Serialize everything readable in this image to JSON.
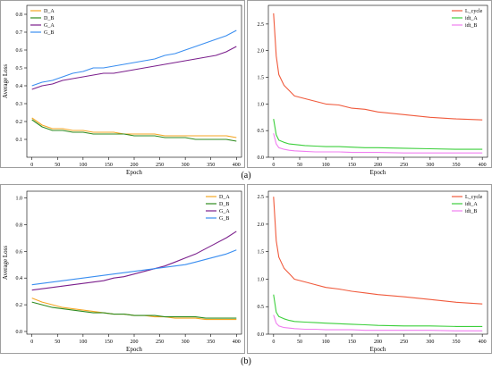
{
  "captions": [
    "(a)",
    "(b)"
  ],
  "colors": {
    "D_A": "#f5a623",
    "D_B": "#2e8b1f",
    "G_A": "#7b1f8c",
    "G_B": "#3a8ef0",
    "L_cycle": "#f05a3c",
    "idt_A": "#3ccf3c",
    "idt_B": "#f07ef0",
    "frame": "#888888"
  },
  "chart_data": [
    {
      "id": "a-left",
      "type": "line",
      "xlabel": "Epoch",
      "ylabel": "Average Loss",
      "xlim": [
        -10,
        410
      ],
      "ylim": [
        0.0,
        0.85
      ],
      "xticks": [
        0,
        50,
        100,
        150,
        200,
        250,
        300,
        350,
        400
      ],
      "yticks": [
        0.1,
        0.2,
        0.3,
        0.4,
        0.5,
        0.6,
        0.7,
        0.8
      ],
      "legend": "top-left",
      "series": [
        {
          "name": "D_A",
          "color_key": "D_A",
          "x": [
            0,
            20,
            40,
            60,
            80,
            100,
            120,
            140,
            160,
            180,
            200,
            220,
            240,
            260,
            280,
            300,
            320,
            340,
            360,
            380,
            400
          ],
          "y": [
            0.22,
            0.18,
            0.16,
            0.16,
            0.15,
            0.15,
            0.14,
            0.14,
            0.14,
            0.13,
            0.13,
            0.13,
            0.13,
            0.12,
            0.12,
            0.12,
            0.12,
            0.12,
            0.12,
            0.12,
            0.11
          ]
        },
        {
          "name": "D_B",
          "color_key": "D_B",
          "x": [
            0,
            20,
            40,
            60,
            80,
            100,
            120,
            140,
            160,
            180,
            200,
            220,
            240,
            260,
            280,
            300,
            320,
            340,
            360,
            380,
            400
          ],
          "y": [
            0.21,
            0.17,
            0.15,
            0.15,
            0.14,
            0.14,
            0.13,
            0.13,
            0.13,
            0.13,
            0.12,
            0.12,
            0.12,
            0.11,
            0.11,
            0.11,
            0.1,
            0.1,
            0.1,
            0.1,
            0.09
          ]
        },
        {
          "name": "G_A",
          "color_key": "G_A",
          "x": [
            0,
            20,
            40,
            60,
            80,
            100,
            120,
            140,
            160,
            180,
            200,
            220,
            240,
            260,
            280,
            300,
            320,
            340,
            360,
            380,
            400
          ],
          "y": [
            0.38,
            0.4,
            0.41,
            0.43,
            0.44,
            0.45,
            0.46,
            0.47,
            0.47,
            0.48,
            0.49,
            0.5,
            0.51,
            0.52,
            0.53,
            0.54,
            0.55,
            0.56,
            0.57,
            0.59,
            0.62
          ]
        },
        {
          "name": "G_B",
          "color_key": "G_B",
          "x": [
            0,
            20,
            40,
            60,
            80,
            100,
            120,
            140,
            160,
            180,
            200,
            220,
            240,
            260,
            280,
            300,
            320,
            340,
            360,
            380,
            400
          ],
          "y": [
            0.4,
            0.42,
            0.43,
            0.45,
            0.47,
            0.48,
            0.5,
            0.5,
            0.51,
            0.52,
            0.53,
            0.54,
            0.55,
            0.57,
            0.58,
            0.6,
            0.62,
            0.64,
            0.66,
            0.68,
            0.71
          ]
        }
      ]
    },
    {
      "id": "a-right",
      "type": "line",
      "xlabel": "Epoch",
      "ylabel": "",
      "xlim": [
        -10,
        410
      ],
      "ylim": [
        0.0,
        2.85
      ],
      "xticks": [
        0,
        50,
        100,
        150,
        200,
        250,
        300,
        350,
        400
      ],
      "yticks": [
        0.0,
        0.5,
        1.0,
        1.5,
        2.0,
        2.5
      ],
      "legend": "top-right",
      "series": [
        {
          "name": "L_cycle",
          "color_key": "L_cycle",
          "x": [
            0,
            5,
            10,
            20,
            30,
            40,
            60,
            80,
            100,
            125,
            150,
            175,
            200,
            250,
            300,
            350,
            400
          ],
          "y": [
            2.7,
            1.9,
            1.55,
            1.35,
            1.25,
            1.15,
            1.1,
            1.05,
            1.0,
            0.98,
            0.92,
            0.9,
            0.85,
            0.8,
            0.75,
            0.72,
            0.7
          ]
        },
        {
          "name": "idt_A",
          "color_key": "idt_A",
          "x": [
            0,
            5,
            10,
            20,
            30,
            40,
            60,
            80,
            100,
            125,
            150,
            175,
            200,
            250,
            300,
            350,
            400
          ],
          "y": [
            0.72,
            0.42,
            0.32,
            0.28,
            0.25,
            0.24,
            0.22,
            0.21,
            0.2,
            0.2,
            0.19,
            0.18,
            0.18,
            0.17,
            0.16,
            0.15,
            0.15
          ]
        },
        {
          "name": "idt_B",
          "color_key": "idt_B",
          "x": [
            0,
            5,
            10,
            20,
            30,
            40,
            60,
            80,
            100,
            125,
            150,
            175,
            200,
            250,
            300,
            350,
            400
          ],
          "y": [
            0.45,
            0.25,
            0.18,
            0.15,
            0.13,
            0.12,
            0.11,
            0.1,
            0.1,
            0.1,
            0.09,
            0.09,
            0.09,
            0.08,
            0.08,
            0.08,
            0.08
          ]
        }
      ]
    },
    {
      "id": "b-left",
      "type": "line",
      "xlabel": "Epoch",
      "ylabel": "Average Loss",
      "xlim": [
        -10,
        410
      ],
      "ylim": [
        -0.02,
        1.05
      ],
      "xticks": [
        0,
        50,
        100,
        150,
        200,
        250,
        300,
        350,
        400
      ],
      "yticks": [
        0.0,
        0.2,
        0.4,
        0.6,
        0.8,
        1.0
      ],
      "legend": "top-right",
      "series": [
        {
          "name": "D_A",
          "color_key": "D_A",
          "x": [
            0,
            20,
            40,
            60,
            80,
            100,
            120,
            140,
            160,
            180,
            200,
            220,
            240,
            260,
            280,
            300,
            320,
            340,
            360,
            380,
            400
          ],
          "y": [
            0.25,
            0.22,
            0.2,
            0.18,
            0.17,
            0.16,
            0.15,
            0.14,
            0.13,
            0.13,
            0.12,
            0.12,
            0.11,
            0.11,
            0.1,
            0.1,
            0.1,
            0.09,
            0.09,
            0.09,
            0.09
          ]
        },
        {
          "name": "D_B",
          "color_key": "D_B",
          "x": [
            0,
            20,
            40,
            60,
            80,
            100,
            120,
            140,
            160,
            180,
            200,
            220,
            240,
            260,
            280,
            300,
            320,
            340,
            360,
            380,
            400
          ],
          "y": [
            0.22,
            0.2,
            0.18,
            0.17,
            0.16,
            0.15,
            0.14,
            0.14,
            0.13,
            0.13,
            0.12,
            0.12,
            0.12,
            0.11,
            0.11,
            0.11,
            0.11,
            0.1,
            0.1,
            0.1,
            0.1
          ]
        },
        {
          "name": "G_A",
          "color_key": "G_A",
          "x": [
            0,
            20,
            40,
            60,
            80,
            100,
            120,
            140,
            160,
            180,
            200,
            220,
            240,
            260,
            280,
            300,
            320,
            340,
            360,
            380,
            400
          ],
          "y": [
            0.31,
            0.32,
            0.33,
            0.34,
            0.35,
            0.36,
            0.37,
            0.38,
            0.4,
            0.41,
            0.43,
            0.45,
            0.47,
            0.49,
            0.52,
            0.55,
            0.58,
            0.62,
            0.66,
            0.7,
            0.75
          ]
        },
        {
          "name": "G_B",
          "color_key": "G_B",
          "x": [
            0,
            20,
            40,
            60,
            80,
            100,
            120,
            140,
            160,
            180,
            200,
            220,
            240,
            260,
            280,
            300,
            320,
            340,
            360,
            380,
            400
          ],
          "y": [
            0.35,
            0.36,
            0.37,
            0.38,
            0.39,
            0.4,
            0.41,
            0.42,
            0.43,
            0.44,
            0.45,
            0.46,
            0.47,
            0.48,
            0.49,
            0.5,
            0.52,
            0.54,
            0.56,
            0.58,
            0.61
          ]
        }
      ]
    },
    {
      "id": "b-right",
      "type": "line",
      "xlabel": "Epoch",
      "ylabel": "",
      "xlim": [
        -10,
        410
      ],
      "ylim": [
        0.0,
        2.6
      ],
      "xticks": [
        0,
        50,
        100,
        150,
        200,
        250,
        300,
        350,
        400
      ],
      "yticks": [
        0.0,
        0.5,
        1.0,
        1.5,
        2.0,
        2.5
      ],
      "legend": "top-right",
      "series": [
        {
          "name": "L_cycle",
          "color_key": "L_cycle",
          "x": [
            0,
            5,
            10,
            20,
            30,
            40,
            60,
            80,
            100,
            125,
            150,
            175,
            200,
            250,
            300,
            350,
            400
          ],
          "y": [
            2.5,
            1.7,
            1.4,
            1.2,
            1.1,
            1.0,
            0.95,
            0.9,
            0.85,
            0.82,
            0.78,
            0.75,
            0.72,
            0.68,
            0.63,
            0.58,
            0.55
          ]
        },
        {
          "name": "idt_A",
          "color_key": "idt_A",
          "x": [
            0,
            5,
            10,
            20,
            30,
            40,
            60,
            80,
            100,
            125,
            150,
            175,
            200,
            250,
            300,
            350,
            400
          ],
          "y": [
            0.72,
            0.4,
            0.32,
            0.28,
            0.25,
            0.23,
            0.22,
            0.21,
            0.2,
            0.19,
            0.18,
            0.17,
            0.16,
            0.15,
            0.15,
            0.14,
            0.14
          ]
        },
        {
          "name": "idt_B",
          "color_key": "idt_B",
          "x": [
            0,
            5,
            10,
            20,
            30,
            40,
            60,
            80,
            100,
            125,
            150,
            175,
            200,
            250,
            300,
            350,
            400
          ],
          "y": [
            0.35,
            0.2,
            0.15,
            0.12,
            0.11,
            0.1,
            0.09,
            0.09,
            0.08,
            0.08,
            0.08,
            0.07,
            0.07,
            0.07,
            0.07,
            0.06,
            0.06
          ]
        }
      ]
    }
  ]
}
